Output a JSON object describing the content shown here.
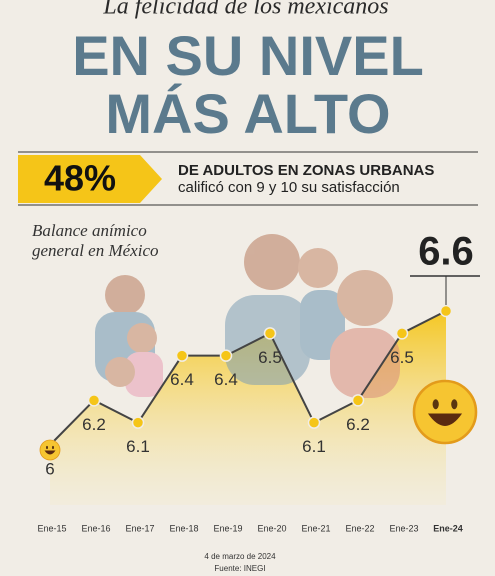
{
  "header": {
    "kicker": "La felicidad de los mexicanos",
    "title_lines": [
      "EN SU NIVEL",
      "MÁS ALTO"
    ]
  },
  "callout": {
    "figure": "48%",
    "line1": "DE ADULTOS EN ZONAS URBANAS",
    "line2": "calificó con 9 y 10 su satisfacción"
  },
  "chart_data": {
    "type": "area",
    "title_lines": [
      "Balance anímico",
      "general en México"
    ],
    "categories": [
      "Ene-15",
      "Ene-16",
      "Ene-17",
      "Ene-18",
      "Ene-19",
      "Ene-20",
      "Ene-21",
      "Ene-22",
      "Ene-23",
      "Ene-24"
    ],
    "values": [
      6,
      6.2,
      6.1,
      6.4,
      6.4,
      6.5,
      6.1,
      6.2,
      6.5,
      6.6
    ],
    "color": "#f5c518"
  },
  "footer": {
    "date": "4 de marzo de 2024",
    "source": "Fuente: INEGI"
  }
}
